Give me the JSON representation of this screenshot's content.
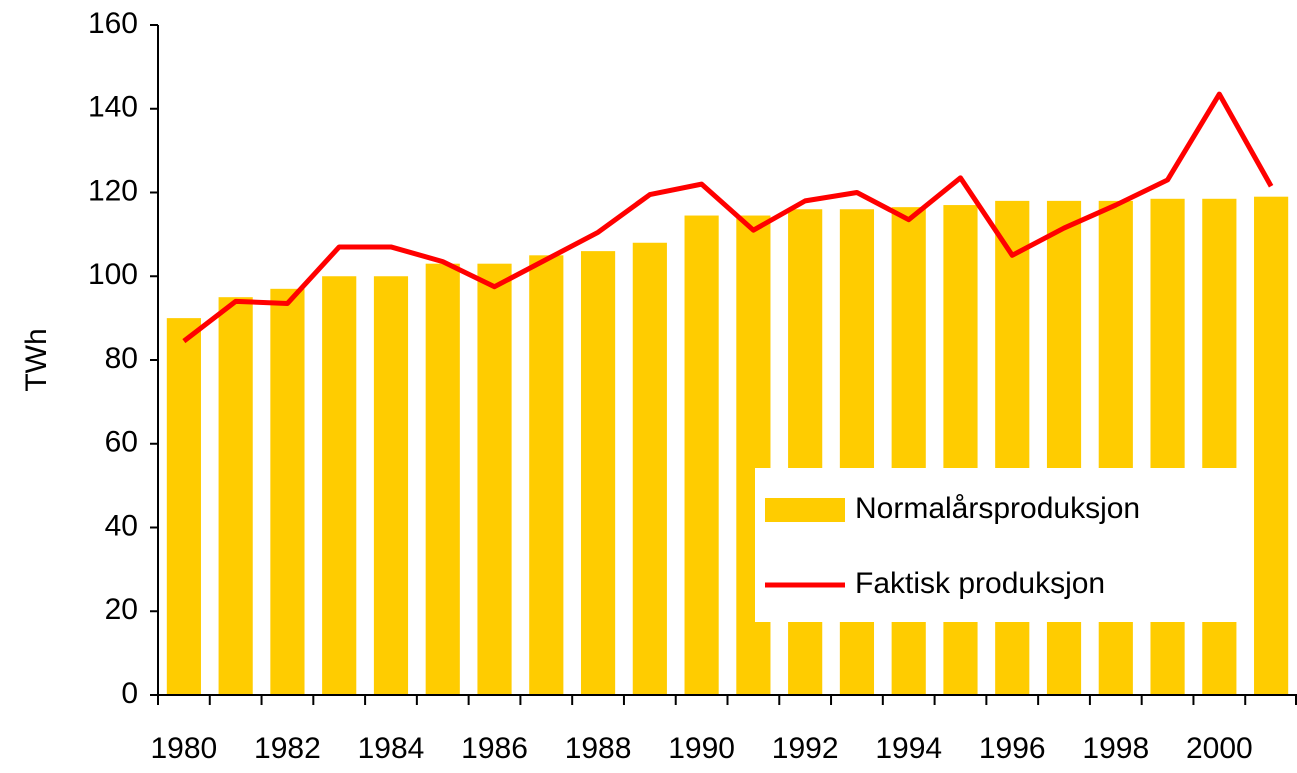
{
  "chart_data": {
    "type": "bar_line",
    "y_label": "TWh",
    "categories": [
      "1980",
      null,
      "1982",
      null,
      "1984",
      null,
      "1986",
      null,
      "1988",
      null,
      "1990",
      null,
      "1992",
      null,
      "1994",
      null,
      "1996",
      null,
      "1998",
      null,
      "2000",
      null
    ],
    "series": [
      {
        "name": "Normalårsproduksjon",
        "type": "bar",
        "color": "#ffcc00",
        "values": [
          90,
          95,
          97,
          100,
          100,
          103,
          103,
          105,
          106,
          108,
          114.5,
          114.5,
          116,
          116,
          116.5,
          117,
          118,
          118,
          118,
          118.5,
          118.5,
          119
        ]
      },
      {
        "name": "Faktisk produksjon",
        "type": "line",
        "color": "#ff0000",
        "values": [
          84.5,
          94,
          93.5,
          107,
          107,
          103.5,
          97.5,
          104,
          110.5,
          119.5,
          122,
          111,
          118,
          120,
          113.5,
          123.5,
          105,
          111.5,
          117,
          123,
          143.5,
          121.5
        ]
      }
    ],
    "ylim": [
      0,
      160
    ],
    "yticks": [
      0,
      20,
      40,
      60,
      80,
      100,
      120,
      140,
      160
    ],
    "legend": "lower right"
  }
}
